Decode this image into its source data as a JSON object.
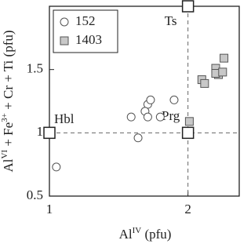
{
  "chart_data": {
    "type": "scatter",
    "x_label": {
      "main": "Al",
      "sup": "IV",
      "rest": " (pfu)"
    },
    "y_label": {
      "main": "Al",
      "sup": "VI",
      "mid": " + Fe",
      "sup2": "3+",
      "rest": " + Cr + Ti (pfu)"
    },
    "xlim": [
      1,
      2.37
    ],
    "ylim": [
      0.5,
      2.0
    ],
    "xticks": [
      1,
      2
    ],
    "yticks": [
      0.5,
      1,
      1.5
    ],
    "series": [
      {
        "name": "152",
        "marker": "circle",
        "color": "#ffffff",
        "x": [
          1.05,
          1.59,
          1.64,
          1.71,
          1.69,
          1.71,
          1.8,
          1.73,
          1.9
        ],
        "y": [
          0.73,
          1.125,
          0.96,
          1.225,
          1.17,
          1.125,
          1.125,
          1.26,
          1.26
        ]
      },
      {
        "name": "1403",
        "marker": "square",
        "color": "#c8c8c8",
        "x": [
          2.01,
          2.1,
          2.12,
          2.2,
          2.22,
          2.2,
          2.25,
          2.26
        ],
        "y": [
          1.09,
          1.42,
          1.39,
          1.51,
          1.46,
          1.47,
          1.48,
          1.59
        ]
      }
    ],
    "reference_points": [
      {
        "label": "Ts",
        "x": 2,
        "y": 2.0
      },
      {
        "label": "Hbl",
        "x": 1,
        "y": 1
      },
      {
        "label": "Prg",
        "x": 2,
        "y": 1
      }
    ],
    "legend": "upper left"
  }
}
